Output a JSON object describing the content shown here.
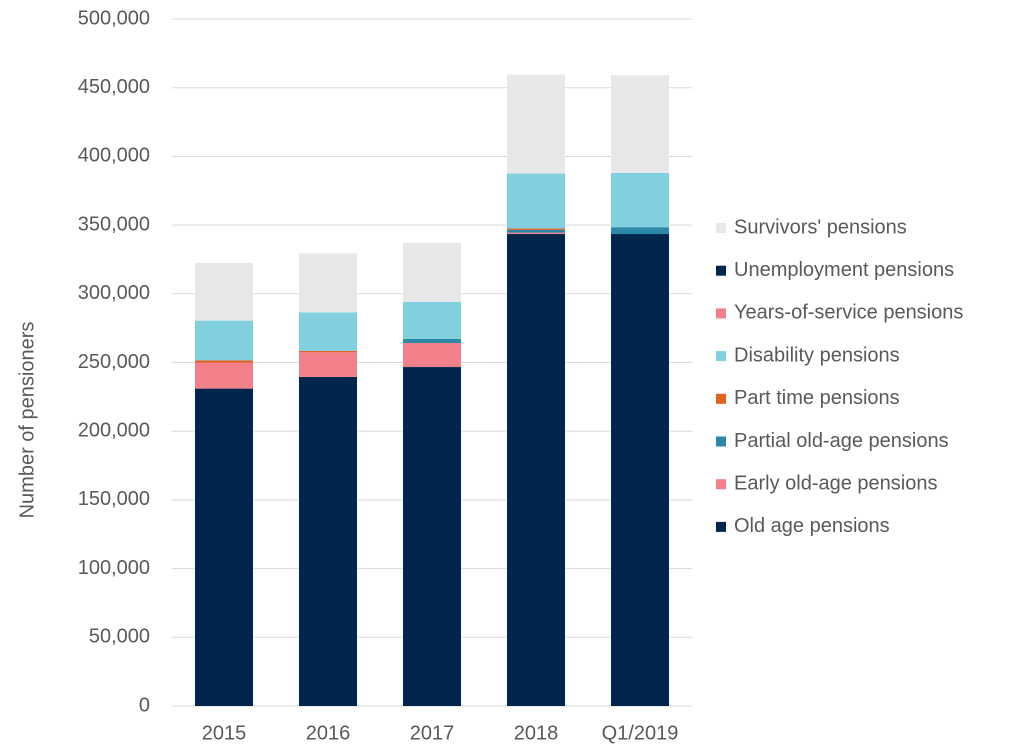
{
  "chart_data": {
    "type": "stacked-bar",
    "y_label": "Number  of pensioners",
    "categories": [
      "2015",
      "2016",
      "2017",
      "2018",
      "Q1/2019"
    ],
    "series": [
      {
        "name": "Old age pensions",
        "color": "#00264d",
        "values": [
          231000,
          239500,
          246700,
          343500,
          343500
        ]
      },
      {
        "name": "Early old-age pensions",
        "color": "#f27f89",
        "values": [
          19000,
          18000,
          17500,
          1000,
          0
        ]
      },
      {
        "name": "Partial old-age pensions",
        "color": "#2b88a8",
        "values": [
          0,
          0,
          3000,
          2000,
          5000
        ]
      },
      {
        "name": "Part time pensions",
        "color": "#e0621b",
        "values": [
          1500,
          1000,
          0,
          1000,
          0
        ]
      },
      {
        "name": "Disability pensions",
        "color": "#80d0e0",
        "values": [
          29000,
          28000,
          27000,
          40000,
          39500
        ]
      },
      {
        "name": "Years-of-service pensions",
        "color": "#f27f89",
        "values": [
          0,
          0,
          0,
          0,
          0
        ]
      },
      {
        "name": "Unemployment pensions",
        "color": "#00264d",
        "values": [
          0,
          0,
          0,
          0,
          0
        ]
      },
      {
        "name": "Survivors' pensions",
        "color": "#e8e8e8",
        "values": [
          42000,
          43000,
          43000,
          72000,
          71000
        ]
      }
    ],
    "ylim": [
      0,
      500000
    ],
    "yticks": [
      0,
      {
        "value": 50000,
        "label": "50,000"
      },
      {
        "value": 100000,
        "label": "100,000"
      },
      {
        "value": 150000,
        "label": "150,000"
      },
      {
        "value": 200000,
        "label": "200,000"
      },
      {
        "value": 250000,
        "label": "250,000"
      },
      {
        "value": 300000,
        "label": "300,000"
      },
      {
        "value": 350000,
        "label": "350,000"
      },
      {
        "value": 400000,
        "label": "400,000"
      },
      {
        "value": 450000,
        "label": "450,000"
      },
      {
        "value": 500000,
        "label": "500,000"
      }
    ],
    "grid": true,
    "legend": "right"
  }
}
